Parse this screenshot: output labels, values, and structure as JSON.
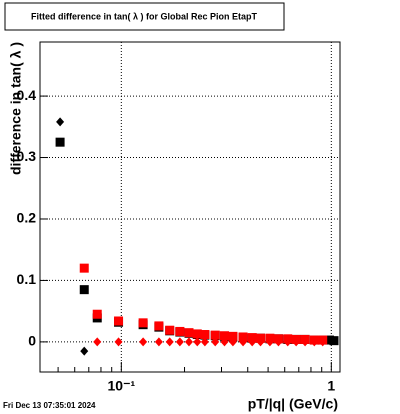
{
  "chart_data": {
    "type": "scatter",
    "title": "Fitted difference in tan( λ ) for Global Rec Pion EtapT",
    "x_label": "pT/|q| (GeV/c)",
    "y_label": "difference in tan( λ )",
    "footer": "Fri Dec 13 07:35:01 2024",
    "x": [
      0.0511,
      0.0666,
      0.0768,
      0.097,
      0.127,
      0.151,
      0.17,
      0.19,
      0.21,
      0.23,
      0.25,
      0.28,
      0.31,
      0.34,
      0.38,
      0.42,
      0.46,
      0.51,
      0.56,
      0.62,
      0.68,
      0.75,
      0.83,
      0.91,
      0.98,
      1.03
    ],
    "series": [
      {
        "color": "#000000",
        "marker": "square",
        "values": [
          0.325,
          0.085,
          0.039,
          0.032,
          0.028,
          0.024,
          0.018,
          0.016,
          0.014,
          0.012,
          0.011,
          0.01,
          0.009,
          0.008,
          0.007,
          0.006,
          0.006,
          0.005,
          0.005,
          0.004,
          0.004,
          0.004,
          0.003,
          0.003,
          0.003,
          0.002
        ]
      },
      {
        "color": "#000000",
        "marker": "diamond",
        "values": [
          0.358,
          -0.015,
          null,
          null,
          null,
          null,
          null,
          null,
          null,
          null,
          null,
          null,
          null,
          null,
          null,
          null,
          null,
          null,
          null,
          null,
          null,
          null,
          null,
          null,
          null,
          null
        ]
      },
      {
        "color": "#ff0000",
        "marker": "square",
        "values": [
          null,
          0.12,
          0.045,
          0.034,
          0.031,
          0.026,
          0.019,
          0.017,
          0.015,
          0.013,
          0.012,
          0.011,
          0.01,
          0.009,
          0.008,
          0.007,
          0.006,
          0.006,
          0.005,
          0.005,
          0.004,
          0.004,
          0.003,
          0.003,
          null,
          null
        ]
      },
      {
        "color": "#ff0000",
        "marker": "diamond",
        "values": [
          null,
          null,
          0,
          0,
          0,
          0,
          0,
          0,
          0,
          0,
          0,
          0,
          0,
          0,
          0,
          0,
          0,
          0,
          0,
          0,
          0,
          0,
          0,
          0,
          null,
          null
        ]
      }
    ],
    "log_x": true,
    "xlim": [
      0.041,
      1.1
    ],
    "xticks": [
      {
        "value": 0.1,
        "label": "10⁻¹"
      },
      1
    ],
    "xminorticks": [
      0.05,
      0.06,
      0.07,
      0.08,
      0.09,
      0.2,
      0.3,
      0.4,
      0.5,
      0.6,
      0.7,
      0.8,
      0.9
    ],
    "ylim": [
      -0.049,
      0.488
    ],
    "yticks": [
      0,
      0.1,
      0.2,
      0.3,
      0.4
    ],
    "grid": true
  }
}
